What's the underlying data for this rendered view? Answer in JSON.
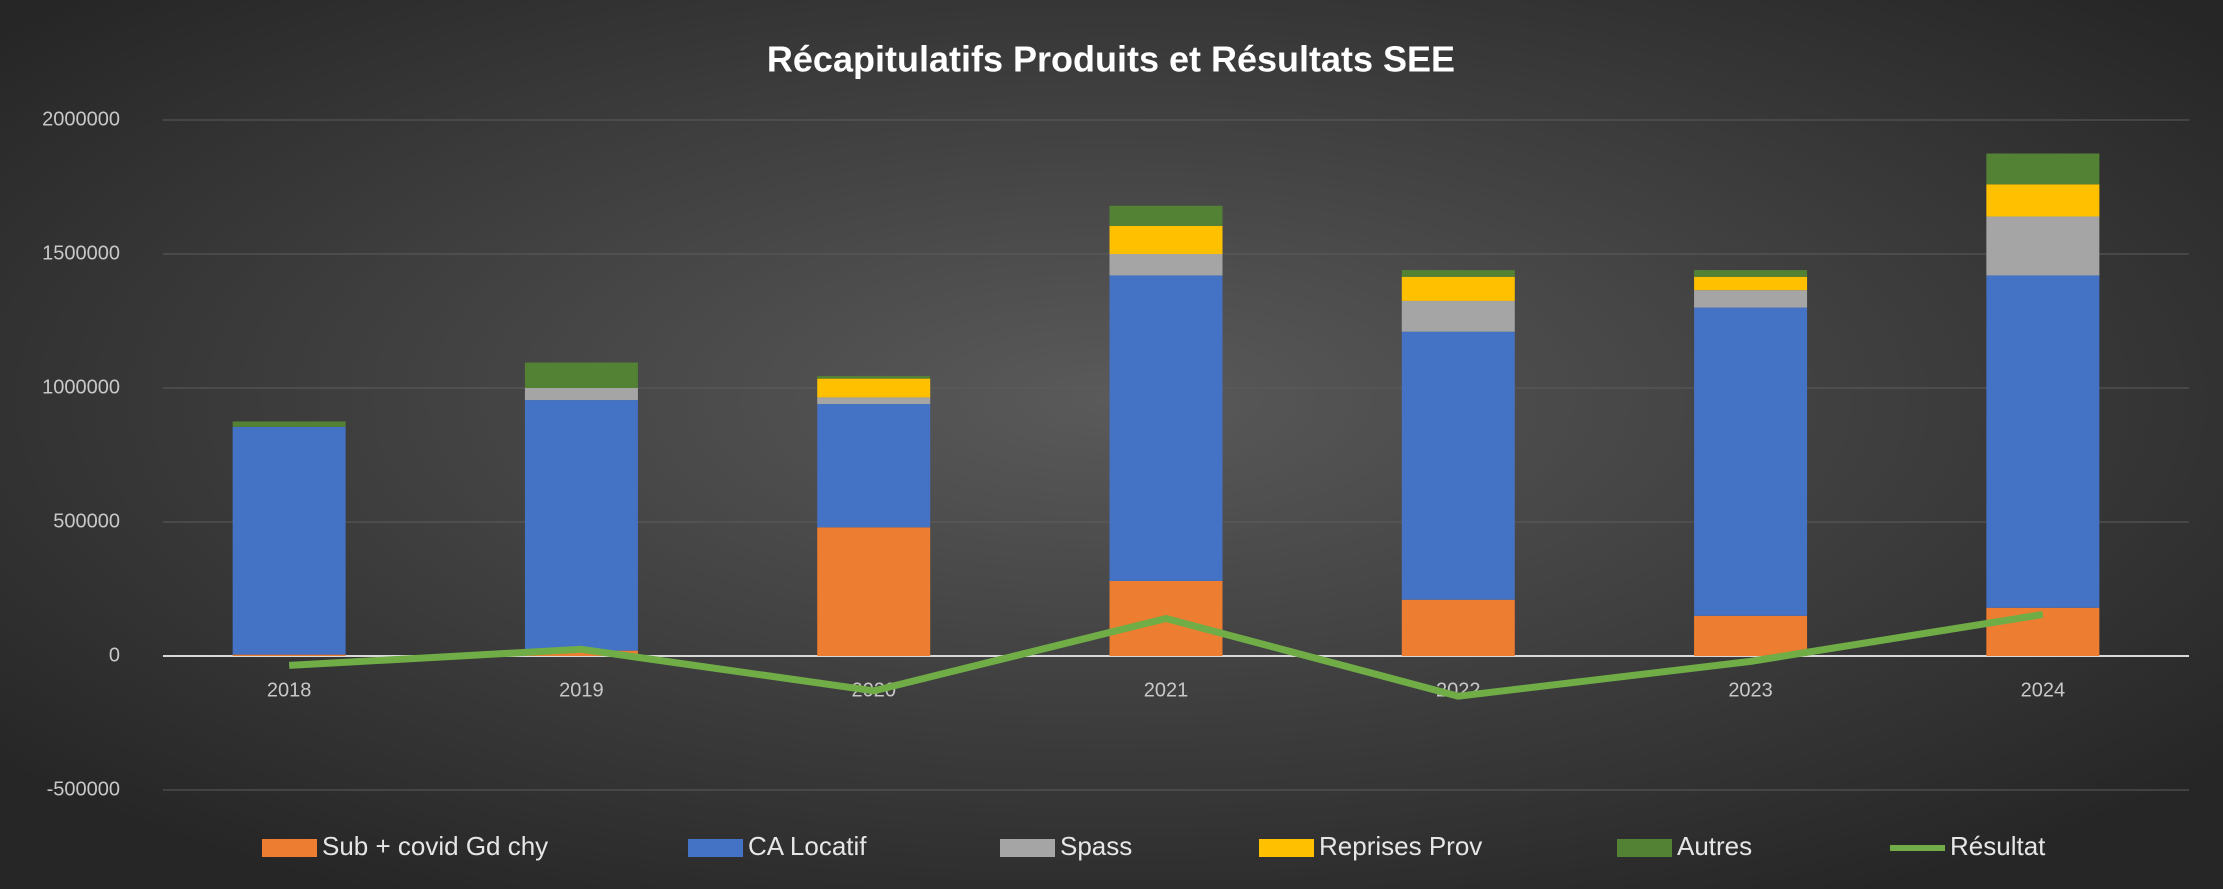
{
  "chart_data": {
    "type": "bar",
    "title": "Récapitulatifs Produits et Résultats SEE",
    "categories": [
      "2018",
      "2019",
      "2020",
      "2021",
      "2022",
      "2023",
      "2024"
    ],
    "stacked": true,
    "grid": true,
    "legend": "bottom",
    "ylim": [
      -500000,
      2000000
    ],
    "yticks": [
      -500000,
      0,
      500000,
      1000000,
      1500000,
      2000000
    ],
    "series": [
      {
        "name": "Sub + covid Gd chy",
        "color": "#ed7d31",
        "type": "bar",
        "values": [
          5000,
          20000,
          480000,
          280000,
          210000,
          150000,
          180000
        ]
      },
      {
        "name": "CA Locatif",
        "color": "#4472c4",
        "type": "bar",
        "values": [
          850000,
          935000,
          460000,
          1140000,
          1000000,
          1150000,
          1240000
        ]
      },
      {
        "name": "Spass",
        "color": "#a5a5a5",
        "type": "bar",
        "values": [
          0,
          45000,
          25000,
          80000,
          115000,
          65000,
          220000
        ]
      },
      {
        "name": "Reprises Prov",
        "color": "#ffc000",
        "type": "bar",
        "values": [
          0,
          0,
          70000,
          105000,
          90000,
          50000,
          120000
        ]
      },
      {
        "name": "Autres",
        "color": "#548235",
        "type": "bar",
        "values": [
          20000,
          95000,
          10000,
          75000,
          25000,
          25000,
          115000
        ]
      },
      {
        "name": "Résultat",
        "color": "#70ad47",
        "type": "line",
        "values": [
          -35000,
          25000,
          -130000,
          140000,
          -150000,
          -20000,
          155000
        ]
      }
    ]
  }
}
